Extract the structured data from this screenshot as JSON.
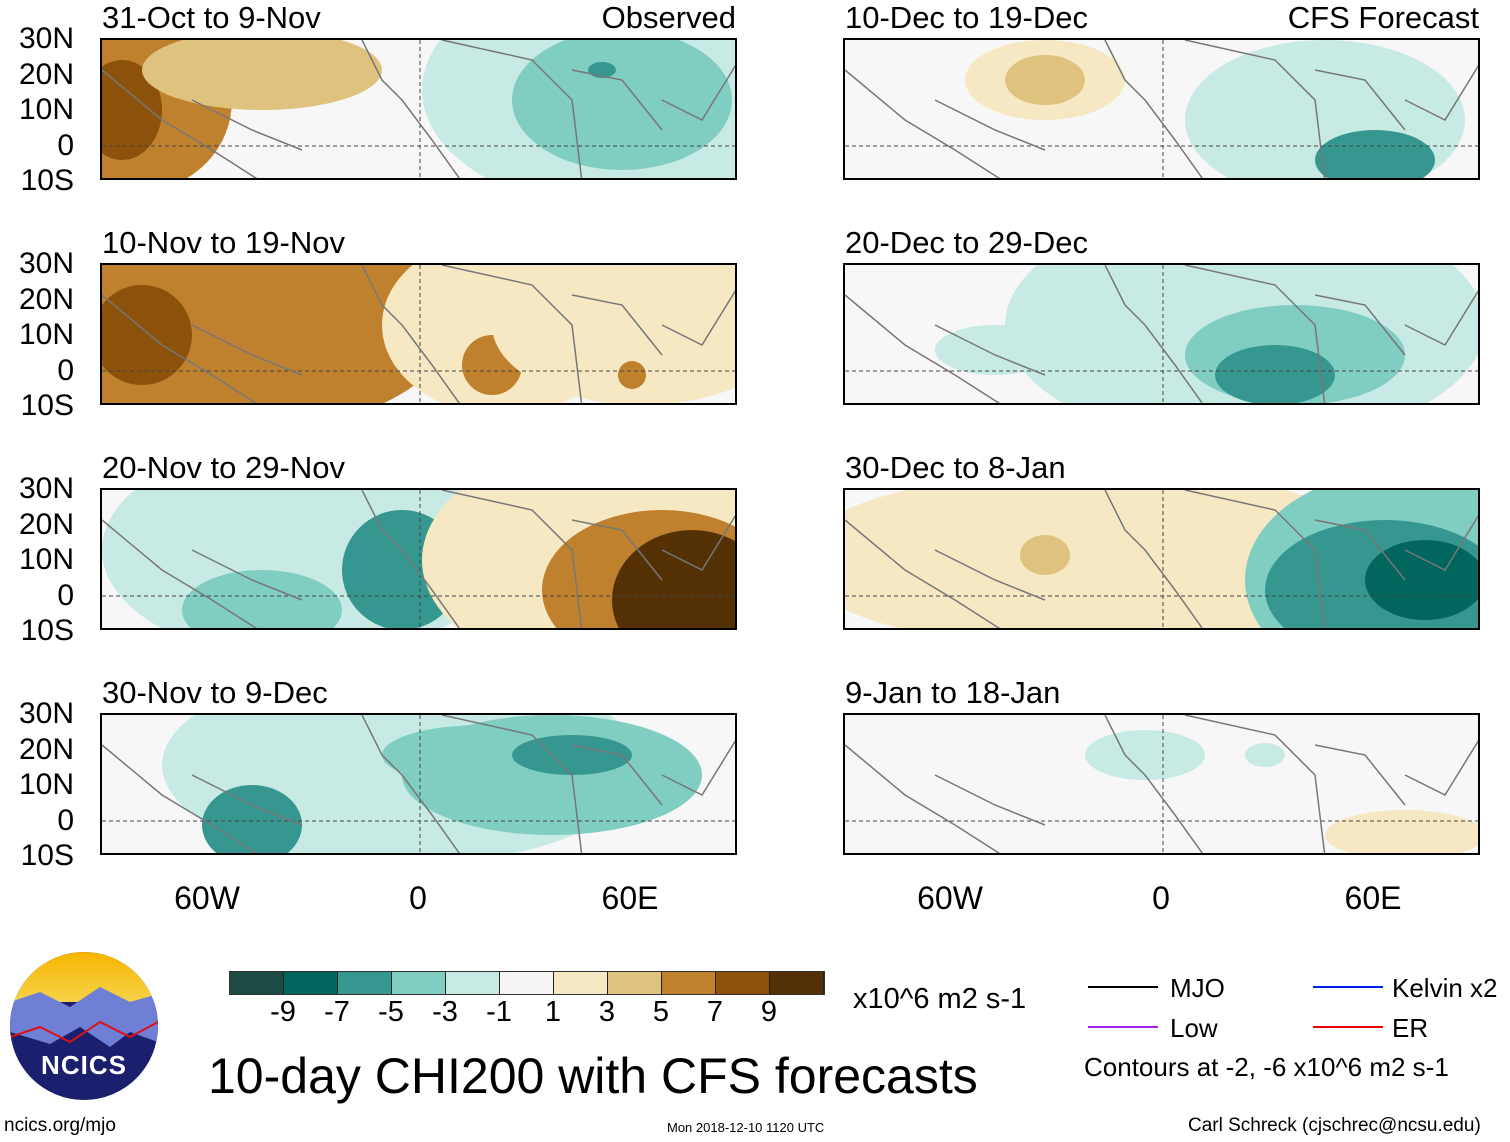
{
  "title": "10-day CHI200 with CFS forecasts",
  "left_header": "Observed",
  "right_header": "CFS Forecast",
  "lat_labels": [
    "30N",
    "20N",
    "10N",
    "0",
    "10S"
  ],
  "lon_labels": [
    "60W",
    "0",
    "60E"
  ],
  "panels_left": [
    "31-Oct to 9-Nov",
    "10-Nov to 19-Nov",
    "20-Nov to 29-Nov",
    "30-Nov to 9-Dec"
  ],
  "panels_right": [
    "10-Dec to 19-Dec",
    "20-Dec to 29-Dec",
    "30-Dec to 8-Jan",
    "9-Jan to 18-Jan"
  ],
  "colorbar": {
    "levels": [
      "-9",
      "-7",
      "-5",
      "-3",
      "-1",
      "1",
      "3",
      "5",
      "7",
      "9"
    ],
    "colors": [
      "#1b4a42",
      "#01665e",
      "#35978f",
      "#80cdc1",
      "#c7eae5",
      "#f5f5f5",
      "#f6e8c3",
      "#dfc27d",
      "#bf812d",
      "#8c510a",
      "#543005"
    ],
    "units": "x10^6 m2 s-1"
  },
  "legend": {
    "items": [
      {
        "label": "MJO",
        "color": "#000000"
      },
      {
        "label": "Kelvin x2",
        "color": "#0022ee"
      },
      {
        "label": "Low",
        "color": "#a020f0"
      },
      {
        "label": "ER",
        "color": "#ee0000"
      }
    ],
    "contours": "Contours at -2, -6 x10^6 m2 s-1"
  },
  "logo": {
    "text": "NCICS"
  },
  "footer": {
    "url": "ncics.org/mjo",
    "timestamp": "Mon 2018-12-10 1120 UTC",
    "author": "Carl Schreck (cjschrec@ncsu.edu)"
  }
}
